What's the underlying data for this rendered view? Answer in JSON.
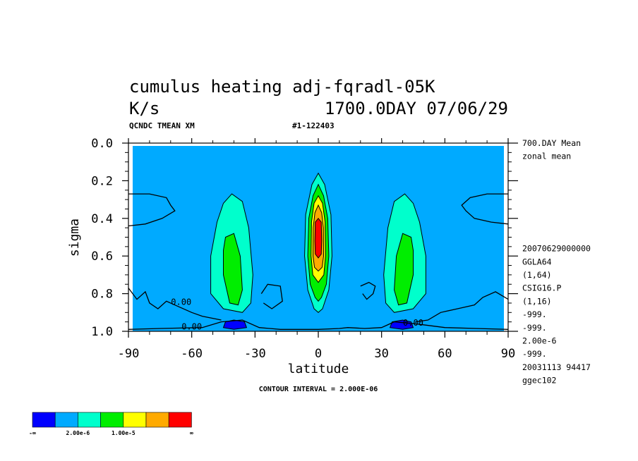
{
  "header": {
    "title_line1": "cumulus heating adj-fqradl-05K",
    "units": "K/s",
    "time": "1700.0DAY 07/06/29",
    "run_id": "QCNDC TMEAN XM",
    "case_id": "#1-122403"
  },
  "side_info": {
    "lines": [
      "700.DAY Mean",
      "zonal mean",
      "",
      "",
      "",
      "",
      "",
      "",
      "20070629000000",
      "GGLA64",
      "(1,64)",
      "CSIG16.P",
      "(1,16)",
      "-999.",
      "-999.",
      "2.00e-6",
      "-999.",
      "20031113  94417",
      "ggec102"
    ]
  },
  "footer": {
    "contour_interval": "CONTOUR INTERVAL = 2.000E-06"
  },
  "colors": {
    "levels": [
      "#0000ff",
      "#00aaff",
      "#00ffcc",
      "#00ee00",
      "#ffff00",
      "#ffaa00",
      "#ff0000"
    ],
    "outline": "#000000"
  },
  "legend": {
    "labels": [
      "-∞",
      "2.00e-6",
      "1.00e-5",
      "∞"
    ]
  },
  "chart_data": {
    "type": "contour",
    "xlabel": "latitude",
    "ylabel": "sigma",
    "xlim": [
      -90,
      90
    ],
    "ylim": [
      1.0,
      0.0
    ],
    "xticks": [
      -90,
      -60,
      -30,
      0,
      30,
      60,
      90
    ],
    "xticklabels": [
      "-90",
      "-60",
      "-30",
      "0",
      "30",
      "60",
      "90"
    ],
    "yticks": [
      0.0,
      0.2,
      0.4,
      0.6,
      0.8,
      1.0
    ],
    "yticklabels": [
      "0.0",
      "0.2",
      "0.4",
      "0.6",
      "0.8",
      "1.0"
    ],
    "contour_interval": 2e-06,
    "contour_labels": [
      {
        "text": "0.00",
        "lat": -65,
        "sigma": 0.86
      },
      {
        "text": "0.00",
        "lat": -60,
        "sigma": 0.99
      },
      {
        "text": "0.00",
        "lat": 45,
        "sigma": 0.97
      }
    ],
    "background_level": 1,
    "regions": [
      {
        "level": 2,
        "points": [
          [
            -45,
            0.32
          ],
          [
            -41,
            0.27
          ],
          [
            -36,
            0.31
          ],
          [
            -33,
            0.45
          ],
          [
            -31,
            0.7
          ],
          [
            -32,
            0.85
          ],
          [
            -36,
            0.9
          ],
          [
            -45,
            0.88
          ],
          [
            -51,
            0.8
          ],
          [
            -51,
            0.6
          ],
          [
            -48,
            0.42
          ]
        ]
      },
      {
        "level": 3,
        "points": [
          [
            -44,
            0.5
          ],
          [
            -40,
            0.48
          ],
          [
            -37,
            0.6
          ],
          [
            -36,
            0.78
          ],
          [
            -38,
            0.86
          ],
          [
            -42,
            0.85
          ],
          [
            -45,
            0.7
          ],
          [
            -45,
            0.57
          ]
        ]
      },
      {
        "level": 2,
        "points": [
          [
            45,
            0.32
          ],
          [
            41,
            0.27
          ],
          [
            36,
            0.31
          ],
          [
            33,
            0.45
          ],
          [
            31,
            0.7
          ],
          [
            32,
            0.85
          ],
          [
            36,
            0.9
          ],
          [
            45,
            0.88
          ],
          [
            51,
            0.8
          ],
          [
            51,
            0.6
          ],
          [
            48,
            0.42
          ]
        ]
      },
      {
        "level": 3,
        "points": [
          [
            44,
            0.5
          ],
          [
            40,
            0.48
          ],
          [
            37,
            0.6
          ],
          [
            36,
            0.78
          ],
          [
            38,
            0.86
          ],
          [
            42,
            0.85
          ],
          [
            45,
            0.7
          ],
          [
            45,
            0.57
          ]
        ]
      },
      {
        "level": 2,
        "points": [
          [
            0,
            0.16
          ],
          [
            -3,
            0.22
          ],
          [
            -6,
            0.38
          ],
          [
            -6.5,
            0.6
          ],
          [
            -5,
            0.78
          ],
          [
            -2,
            0.88
          ],
          [
            0,
            0.9
          ],
          [
            2,
            0.88
          ],
          [
            5,
            0.78
          ],
          [
            6.5,
            0.6
          ],
          [
            6,
            0.38
          ],
          [
            3,
            0.22
          ]
        ]
      },
      {
        "level": 3,
        "points": [
          [
            0,
            0.22
          ],
          [
            -2.5,
            0.28
          ],
          [
            -4.5,
            0.4
          ],
          [
            -5,
            0.6
          ],
          [
            -3.8,
            0.75
          ],
          [
            -1.5,
            0.82
          ],
          [
            0,
            0.84
          ],
          [
            1.5,
            0.82
          ],
          [
            3.8,
            0.75
          ],
          [
            5,
            0.6
          ],
          [
            4.5,
            0.4
          ],
          [
            2.5,
            0.28
          ]
        ]
      },
      {
        "level": 4,
        "points": [
          [
            0,
            0.28
          ],
          [
            -2,
            0.32
          ],
          [
            -3.2,
            0.42
          ],
          [
            -3.4,
            0.6
          ],
          [
            -2.6,
            0.7
          ],
          [
            0,
            0.74
          ],
          [
            2.6,
            0.7
          ],
          [
            3.4,
            0.6
          ],
          [
            3.2,
            0.42
          ],
          [
            2,
            0.32
          ]
        ]
      },
      {
        "level": 5,
        "points": [
          [
            0,
            0.33
          ],
          [
            -1.6,
            0.37
          ],
          [
            -2.4,
            0.45
          ],
          [
            -2.5,
            0.6
          ],
          [
            -1.8,
            0.66
          ],
          [
            0,
            0.68
          ],
          [
            1.8,
            0.66
          ],
          [
            2.5,
            0.6
          ],
          [
            2.4,
            0.45
          ],
          [
            1.6,
            0.37
          ]
        ]
      },
      {
        "level": 6,
        "points": [
          [
            0,
            0.4
          ],
          [
            -1.4,
            0.42
          ],
          [
            -1.6,
            0.52
          ],
          [
            -1.4,
            0.59
          ],
          [
            0,
            0.61
          ],
          [
            1.4,
            0.59
          ],
          [
            1.6,
            0.52
          ],
          [
            1.4,
            0.42
          ]
        ]
      },
      {
        "level": 0,
        "points": [
          [
            -44,
            0.95
          ],
          [
            -40,
            0.94
          ],
          [
            -35,
            0.95
          ],
          [
            -34,
            0.98
          ],
          [
            -40,
            0.99
          ],
          [
            -45,
            0.98
          ]
        ]
      },
      {
        "level": 0,
        "points": [
          [
            44,
            0.95
          ],
          [
            40,
            0.94
          ],
          [
            35,
            0.95
          ],
          [
            34,
            0.98
          ],
          [
            40,
            0.99
          ],
          [
            45,
            0.98
          ]
        ]
      }
    ],
    "zero_lines": [
      [
        [
          -90,
          0.27
        ],
        [
          -80,
          0.27
        ],
        [
          -72,
          0.29
        ],
        [
          -70,
          0.33
        ],
        [
          -68,
          0.36
        ],
        [
          -74,
          0.4
        ],
        [
          -82,
          0.43
        ],
        [
          -90,
          0.44
        ]
      ],
      [
        [
          90,
          0.27
        ],
        [
          80,
          0.27
        ],
        [
          72,
          0.29
        ],
        [
          68,
          0.33
        ],
        [
          70,
          0.36
        ],
        [
          74,
          0.4
        ],
        [
          82,
          0.42
        ],
        [
          90,
          0.43
        ]
      ],
      [
        [
          -90,
          0.77
        ],
        [
          -86,
          0.83
        ],
        [
          -82,
          0.79
        ],
        [
          -80,
          0.85
        ],
        [
          -76,
          0.88
        ],
        [
          -72,
          0.84
        ],
        [
          -66,
          0.87
        ],
        [
          -60,
          0.9
        ],
        [
          -55,
          0.92
        ],
        [
          -46,
          0.94
        ]
      ],
      [
        [
          -90,
          0.99
        ],
        [
          -75,
          0.985
        ],
        [
          -55,
          0.98
        ],
        [
          -46,
          0.95
        ],
        [
          -36,
          0.94
        ],
        [
          -28,
          0.98
        ],
        [
          -18,
          0.99
        ],
        [
          0,
          0.99
        ],
        [
          10,
          0.985
        ],
        [
          14,
          0.98
        ],
        [
          22,
          0.985
        ],
        [
          30,
          0.98
        ],
        [
          36,
          0.95
        ],
        [
          46,
          0.96
        ],
        [
          60,
          0.98
        ],
        [
          75,
          0.985
        ],
        [
          90,
          0.99
        ]
      ],
      [
        [
          -27,
          0.8
        ],
        [
          -24,
          0.75
        ],
        [
          -18,
          0.76
        ],
        [
          -17,
          0.84
        ],
        [
          -22,
          0.88
        ],
        [
          -26,
          0.85
        ]
      ],
      [
        [
          20,
          0.76
        ],
        [
          24,
          0.74
        ],
        [
          27,
          0.76
        ],
        [
          26,
          0.8
        ],
        [
          23,
          0.83
        ],
        [
          21,
          0.8
        ]
      ],
      [
        [
          90,
          0.83
        ],
        [
          84,
          0.79
        ],
        [
          78,
          0.82
        ],
        [
          74,
          0.86
        ],
        [
          66,
          0.88
        ],
        [
          58,
          0.9
        ],
        [
          52,
          0.94
        ],
        [
          46,
          0.95
        ]
      ]
    ]
  }
}
